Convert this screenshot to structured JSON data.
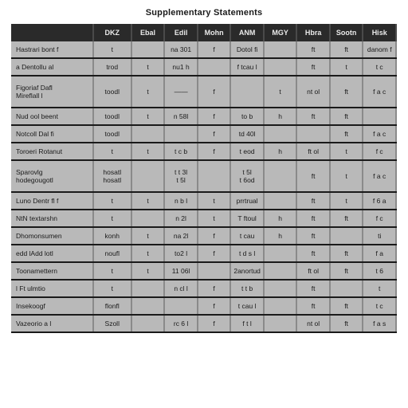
{
  "title": "Supplementary Statements",
  "table": {
    "background_color": "#b9b9b9",
    "header_bg": "#2a2a2a",
    "header_fg": "#eaeaea",
    "border_color": "#1a1a1a",
    "columns": [
      "",
      "DKZ",
      "Ebal",
      "Edil",
      "Mohn",
      "ANM",
      "MGY",
      "Hbra",
      "Sootn",
      "Hisk"
    ],
    "rows": [
      {
        "tall": false,
        "cells": [
          "Hastrari bont f",
          "t",
          "",
          "na 301",
          "f",
          "Dotol fi",
          "",
          "ft",
          "ft",
          "danom f"
        ]
      },
      {
        "tall": false,
        "cells": [
          "a Dentollu al",
          "trod",
          "t",
          "nu1 h",
          "",
          "f tcau l",
          "",
          "ft",
          "t",
          "t c"
        ]
      },
      {
        "tall": true,
        "cells": [
          "Figoriaf Dafl\nMireflall l",
          "toodl",
          "t",
          "——",
          "f",
          "",
          "t",
          "nt ol",
          "ft",
          "f a c"
        ]
      },
      {
        "tall": false,
        "cells": [
          "Nud ool beent",
          "toodl",
          "t",
          "n 58l",
          "f",
          "to b",
          "h",
          "ft",
          "ft",
          ""
        ]
      },
      {
        "tall": false,
        "cells": [
          "Notcoll Dal fi",
          "toodl",
          "",
          "",
          "f",
          "td 40l",
          "",
          "",
          "ft",
          "f a c"
        ]
      },
      {
        "tall": false,
        "cells": [
          "Toroeri Rotanut",
          "t",
          "t",
          "t c b",
          "f",
          "t eod",
          "h",
          "ft ol",
          "t",
          "f c"
        ]
      },
      {
        "tall": true,
        "cells": [
          "Sparovlg\nhodegougotl",
          "hosatl\nhosatl",
          "",
          "t t 3l\nt 5l",
          "",
          "t 5l\nt 6od",
          "",
          "ft",
          "t",
          "f a c"
        ]
      },
      {
        "tall": false,
        "cells": [
          "Luno Dentr fl f",
          "t",
          "t",
          "n b l",
          "t",
          "prrtrual",
          "",
          "ft",
          "t",
          "f 6 a"
        ]
      },
      {
        "tall": false,
        "cells": [
          "NtN textarshn",
          "t",
          "",
          "n 2l",
          "t",
          "T ftoul",
          "h",
          "ft",
          "ft",
          "f c"
        ]
      },
      {
        "tall": false,
        "cells": [
          "Dhomonsumen",
          "konh",
          "t",
          "na 2l",
          "f",
          "t cau",
          "h",
          "ft",
          "",
          "ti"
        ]
      },
      {
        "tall": false,
        "cells": [
          "edd lAdd lotl",
          "noufl",
          "t",
          "to2 l",
          "f",
          "t d s l",
          "",
          "ft",
          "ft",
          "f a"
        ]
      },
      {
        "tall": false,
        "cells": [
          "Toonamettern",
          "t",
          "t",
          "11 06l",
          "",
          "2anortud",
          "",
          "ft ol",
          "ft",
          "t 6"
        ]
      },
      {
        "tall": false,
        "cells": [
          "l Ft ulmtio",
          "t",
          "",
          "n cl l",
          "f",
          "t t b",
          "",
          "ft",
          "",
          "t"
        ]
      },
      {
        "tall": false,
        "cells": [
          "Insekoogf",
          "flonfl",
          "",
          "",
          "f",
          "t cau l",
          "",
          "ft",
          "ft",
          "t c"
        ]
      },
      {
        "tall": false,
        "cells": [
          "Vazeorio a l",
          "Szoll",
          "",
          "rc 6 l",
          "f",
          "f t l",
          "",
          "nt ol",
          "ft",
          "f a s"
        ]
      }
    ]
  }
}
